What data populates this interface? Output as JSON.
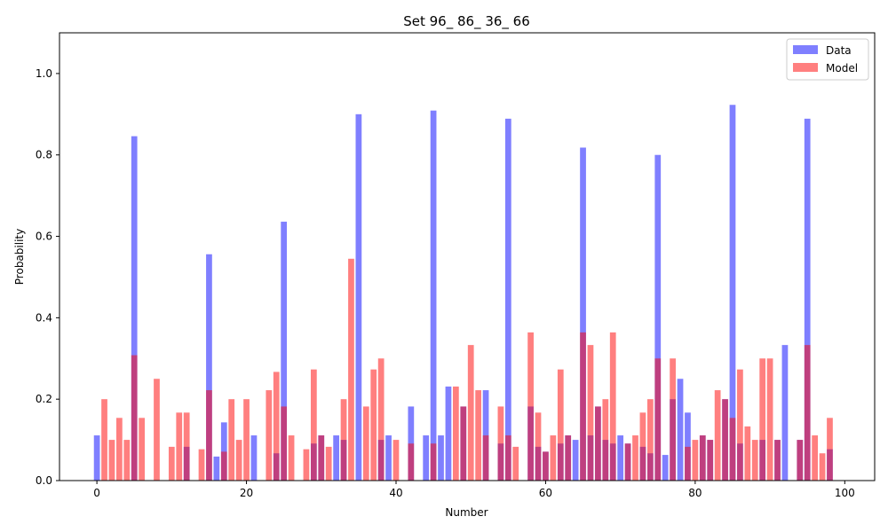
{
  "chart_data": {
    "type": "bar",
    "title": "Set 96_ 86_ 36_ 66",
    "xlabel": "Number",
    "ylabel": "Probability",
    "xlim": [
      -5,
      104
    ],
    "ylim": [
      0,
      1.1
    ],
    "xticks": [
      0,
      20,
      40,
      60,
      80,
      100
    ],
    "yticks": [
      0.0,
      0.2,
      0.4,
      0.6,
      0.8,
      1.0
    ],
    "ytick_labels": [
      "0.0",
      "0.2",
      "0.4",
      "0.6",
      "0.8",
      "1.0"
    ],
    "legend_position": "top-right",
    "series": [
      {
        "name": "Data",
        "color": "#0000ff",
        "alpha": 0.5,
        "points": [
          [
            0,
            0.111
          ],
          [
            5,
            0.846
          ],
          [
            12,
            0.083
          ],
          [
            15,
            0.556
          ],
          [
            16,
            0.059
          ],
          [
            17,
            0.143
          ],
          [
            21,
            0.111
          ],
          [
            24,
            0.067
          ],
          [
            25,
            0.636
          ],
          [
            29,
            0.091
          ],
          [
            30,
            0.111
          ],
          [
            32,
            0.111
          ],
          [
            33,
            0.1
          ],
          [
            35,
            0.9
          ],
          [
            38,
            0.1
          ],
          [
            39,
            0.111
          ],
          [
            42,
            0.182
          ],
          [
            44,
            0.111
          ],
          [
            45,
            0.909
          ],
          [
            46,
            0.111
          ],
          [
            47,
            0.231
          ],
          [
            49,
            0.182
          ],
          [
            52,
            0.222
          ],
          [
            54,
            0.091
          ],
          [
            55,
            0.889
          ],
          [
            58,
            0.182
          ],
          [
            59,
            0.083
          ],
          [
            60,
            0.071
          ],
          [
            62,
            0.091
          ],
          [
            63,
            0.111
          ],
          [
            64,
            0.1
          ],
          [
            65,
            0.818
          ],
          [
            66,
            0.111
          ],
          [
            67,
            0.182
          ],
          [
            68,
            0.1
          ],
          [
            69,
            0.091
          ],
          [
            70,
            0.111
          ],
          [
            71,
            0.091
          ],
          [
            73,
            0.083
          ],
          [
            74,
            0.067
          ],
          [
            75,
            0.8
          ],
          [
            76,
            0.063
          ],
          [
            77,
            0.2
          ],
          [
            78,
            0.25
          ],
          [
            79,
            0.167
          ],
          [
            81,
            0.111
          ],
          [
            82,
            0.1
          ],
          [
            84,
            0.2
          ],
          [
            85,
            0.923
          ],
          [
            86,
            0.091
          ],
          [
            89,
            0.1
          ],
          [
            91,
            0.1
          ],
          [
            92,
            0.333
          ],
          [
            94,
            0.1
          ],
          [
            95,
            0.889
          ],
          [
            98,
            0.077
          ]
        ]
      },
      {
        "name": "Model",
        "color": "#ff0000",
        "alpha": 0.5,
        "points": [
          [
            1,
            0.2
          ],
          [
            2,
            0.1
          ],
          [
            3,
            0.154
          ],
          [
            4,
            0.1
          ],
          [
            5,
            0.308
          ],
          [
            6,
            0.154
          ],
          [
            8,
            0.25
          ],
          [
            10,
            0.083
          ],
          [
            11,
            0.167
          ],
          [
            12,
            0.167
          ],
          [
            14,
            0.077
          ],
          [
            15,
            0.222
          ],
          [
            17,
            0.071
          ],
          [
            18,
            0.2
          ],
          [
            19,
            0.1
          ],
          [
            20,
            0.2
          ],
          [
            23,
            0.222
          ],
          [
            24,
            0.267
          ],
          [
            25,
            0.182
          ],
          [
            26,
            0.111
          ],
          [
            28,
            0.077
          ],
          [
            29,
            0.273
          ],
          [
            30,
            0.111
          ],
          [
            31,
            0.083
          ],
          [
            33,
            0.2
          ],
          [
            34,
            0.545
          ],
          [
            36,
            0.182
          ],
          [
            37,
            0.273
          ],
          [
            38,
            0.3
          ],
          [
            40,
            0.1
          ],
          [
            42,
            0.091
          ],
          [
            45,
            0.091
          ],
          [
            48,
            0.231
          ],
          [
            49,
            0.182
          ],
          [
            50,
            0.333
          ],
          [
            51,
            0.222
          ],
          [
            52,
            0.111
          ],
          [
            54,
            0.182
          ],
          [
            55,
            0.111
          ],
          [
            56,
            0.083
          ],
          [
            58,
            0.364
          ],
          [
            59,
            0.167
          ],
          [
            60,
            0.071
          ],
          [
            61,
            0.111
          ],
          [
            62,
            0.273
          ],
          [
            63,
            0.111
          ],
          [
            65,
            0.364
          ],
          [
            66,
            0.333
          ],
          [
            67,
            0.182
          ],
          [
            68,
            0.2
          ],
          [
            69,
            0.364
          ],
          [
            71,
            0.091
          ],
          [
            72,
            0.111
          ],
          [
            73,
            0.167
          ],
          [
            74,
            0.2
          ],
          [
            75,
            0.3
          ],
          [
            77,
            0.3
          ],
          [
            79,
            0.083
          ],
          [
            80,
            0.1
          ],
          [
            81,
            0.111
          ],
          [
            82,
            0.1
          ],
          [
            83,
            0.222
          ],
          [
            84,
            0.2
          ],
          [
            85,
            0.154
          ],
          [
            86,
            0.273
          ],
          [
            87,
            0.133
          ],
          [
            88,
            0.1
          ],
          [
            89,
            0.3
          ],
          [
            90,
            0.3
          ],
          [
            91,
            0.1
          ],
          [
            94,
            0.1
          ],
          [
            95,
            0.333
          ],
          [
            96,
            0.111
          ],
          [
            97,
            0.067
          ],
          [
            98,
            0.154
          ]
        ]
      }
    ]
  }
}
